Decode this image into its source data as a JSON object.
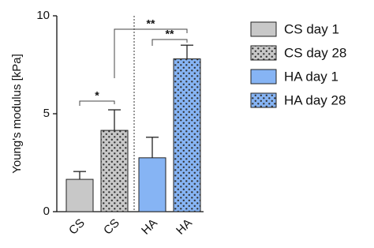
{
  "chart_data": {
    "type": "bar",
    "y_label": "Young's modulus [kPa]",
    "categories": [
      "CS",
      "CS",
      "HA",
      "HA"
    ],
    "values": [
      1.65,
      4.15,
      2.75,
      7.8
    ],
    "errors": [
      0.4,
      1.05,
      1.05,
      0.7
    ],
    "legend": [
      {
        "name": "CS day 1",
        "color": "#c8c8c8",
        "pattern": "none"
      },
      {
        "name": "CS day 28",
        "color": "#c8c8c8",
        "pattern": "dots"
      },
      {
        "name": "HA day 1",
        "color": "#86b4f4",
        "pattern": "none"
      },
      {
        "name": "HA day 28",
        "color": "#86b4f4",
        "pattern": "dots"
      }
    ],
    "annotations": [
      "*",
      "**",
      "**"
    ],
    "ylim": [
      0,
      10
    ],
    "yticks": [
      0,
      5,
      10
    ]
  }
}
